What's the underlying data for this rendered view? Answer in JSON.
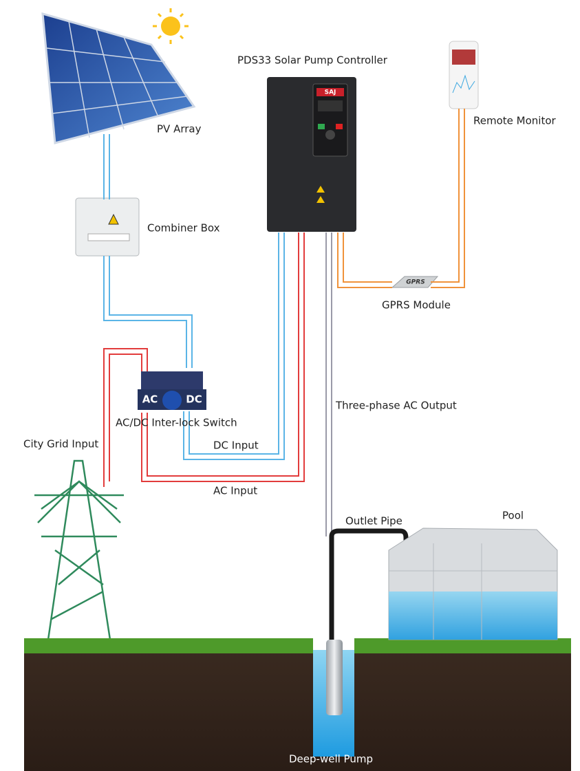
{
  "title": "PDS33 Solar Pump Controller",
  "nodes": [
    {
      "label": "PV Array"
    },
    {
      "label": "Combiner Box"
    },
    {
      "label": "Remote Monitor"
    },
    {
      "label": "GPRS Module",
      "badge": "GPRS"
    },
    {
      "label": "AC/DC Inter-lock Switch",
      "left": "AC",
      "right": "DC"
    },
    {
      "label": "City Grid Input"
    },
    {
      "label": "Pool"
    },
    {
      "label": "Deep-well Pump"
    }
  ],
  "controller_brand": "SAJ",
  "links": [
    {
      "label": "DC Input"
    },
    {
      "label": "AC Input"
    },
    {
      "label": "Three-phase AC Output"
    },
    {
      "label": "Outlet Pipe"
    }
  ]
}
